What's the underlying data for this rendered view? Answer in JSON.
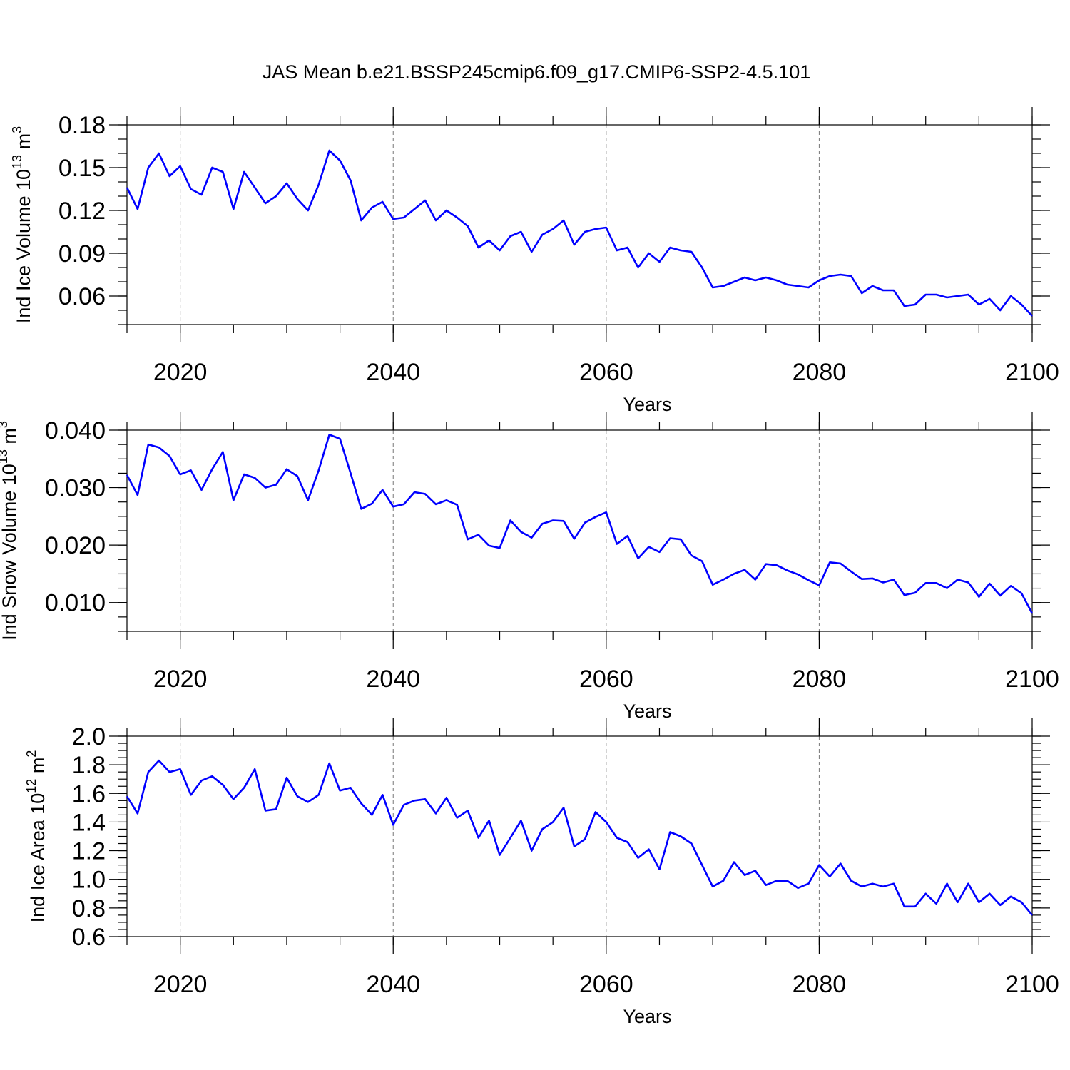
{
  "title": "JAS Mean b.e21.BSSP245cmip6.f09_g17.CMIP6-SSP2-4.5.101",
  "colors": {
    "series": "#0000ff",
    "frame": "#000000",
    "grid": "#777777"
  },
  "chart_data": [
    {
      "type": "line",
      "xlabel": "Years",
      "ylabel": "Ind Ice Volume 10",
      "ylabel_sup": "13",
      "ylabel_unit": " m",
      "ylabel_unit_sup": "3",
      "xlim": [
        2015,
        2100
      ],
      "ylim": [
        0.04,
        0.18
      ],
      "xticks": [
        2020,
        2040,
        2060,
        2080,
        2100
      ],
      "yticks": [
        0.06,
        0.09,
        0.12,
        0.15,
        0.18
      ],
      "ytick_labels": [
        "0.06",
        "0.09",
        "0.12",
        "0.15",
        "0.18"
      ],
      "y_minor_step": 0.01,
      "x_minor_step": 5,
      "grid": "vertical dashed at major x ticks",
      "x_start": 2015,
      "values": [
        0.136,
        0.121,
        0.15,
        0.16,
        0.144,
        0.151,
        0.135,
        0.131,
        0.15,
        0.147,
        0.121,
        0.147,
        0.136,
        0.125,
        0.13,
        0.139,
        0.128,
        0.12,
        0.138,
        0.162,
        0.155,
        0.141,
        0.113,
        0.122,
        0.126,
        0.114,
        0.115,
        0.121,
        0.127,
        0.113,
        0.12,
        0.115,
        0.109,
        0.094,
        0.099,
        0.092,
        0.102,
        0.105,
        0.091,
        0.103,
        0.107,
        0.113,
        0.096,
        0.105,
        0.107,
        0.108,
        0.092,
        0.094,
        0.08,
        0.09,
        0.084,
        0.094,
        0.092,
        0.091,
        0.08,
        0.066,
        0.067,
        0.07,
        0.073,
        0.071,
        0.073,
        0.071,
        0.068,
        0.067,
        0.066,
        0.071,
        0.074,
        0.075,
        0.074,
        0.062,
        0.067,
        0.064,
        0.064,
        0.053,
        0.054,
        0.061,
        0.061,
        0.059,
        0.06,
        0.061,
        0.054,
        0.058,
        0.05,
        0.06,
        0.054,
        0.046
      ]
    },
    {
      "type": "line",
      "xlabel": "Years",
      "ylabel": "Ind Snow Volume 10",
      "ylabel_sup": "13",
      "ylabel_unit": " m",
      "ylabel_unit_sup": "3",
      "xlim": [
        2015,
        2100
      ],
      "ylim": [
        0.005,
        0.04
      ],
      "xticks": [
        2020,
        2040,
        2060,
        2080,
        2100
      ],
      "yticks": [
        0.01,
        0.02,
        0.03,
        0.04
      ],
      "ytick_labels": [
        "0.010",
        "0.020",
        "0.030",
        "0.040"
      ],
      "y_minor_step": 0.0025,
      "x_minor_step": 5,
      "grid": "vertical dashed at major x ticks",
      "x_start": 2015,
      "values": [
        0.0322,
        0.0287,
        0.0375,
        0.037,
        0.0355,
        0.0323,
        0.033,
        0.0296,
        0.0332,
        0.0362,
        0.0278,
        0.0323,
        0.0317,
        0.03,
        0.0305,
        0.0332,
        0.032,
        0.0278,
        0.033,
        0.0392,
        0.0385,
        0.0325,
        0.0263,
        0.0272,
        0.0296,
        0.0267,
        0.0271,
        0.0292,
        0.0289,
        0.0271,
        0.0278,
        0.027,
        0.021,
        0.0218,
        0.0199,
        0.0195,
        0.0243,
        0.0223,
        0.0213,
        0.0237,
        0.0243,
        0.0242,
        0.0211,
        0.0239,
        0.0249,
        0.0257,
        0.0202,
        0.0216,
        0.0177,
        0.0197,
        0.0188,
        0.0212,
        0.021,
        0.0182,
        0.0172,
        0.0131,
        0.014,
        0.015,
        0.0157,
        0.014,
        0.0167,
        0.0165,
        0.0156,
        0.0149,
        0.0139,
        0.013,
        0.017,
        0.0168,
        0.0154,
        0.0141,
        0.0142,
        0.0135,
        0.014,
        0.0113,
        0.0117,
        0.0134,
        0.0134,
        0.0125,
        0.014,
        0.0135,
        0.011,
        0.0133,
        0.0112,
        0.0129,
        0.0116,
        0.0081
      ]
    },
    {
      "type": "line",
      "xlabel": "Years",
      "ylabel": "Ind Ice Area 10",
      "ylabel_sup": "12",
      "ylabel_unit": " m",
      "ylabel_unit_sup": "2",
      "xlim": [
        2015,
        2100
      ],
      "ylim": [
        0.6,
        2.0
      ],
      "xticks": [
        2020,
        2040,
        2060,
        2080,
        2100
      ],
      "yticks": [
        0.6,
        0.8,
        1.0,
        1.2,
        1.4,
        1.6,
        1.8,
        2.0
      ],
      "ytick_labels": [
        "0.6",
        "0.8",
        "1.0",
        "1.2",
        "1.4",
        "1.6",
        "1.8",
        "2.0"
      ],
      "y_minor_step": 0.05,
      "x_minor_step": 5,
      "grid": "vertical dashed at major x ticks",
      "x_start": 2015,
      "values": [
        1.58,
        1.46,
        1.75,
        1.83,
        1.75,
        1.77,
        1.59,
        1.69,
        1.72,
        1.66,
        1.56,
        1.64,
        1.77,
        1.48,
        1.49,
        1.71,
        1.58,
        1.54,
        1.59,
        1.81,
        1.62,
        1.64,
        1.53,
        1.45,
        1.59,
        1.38,
        1.52,
        1.55,
        1.56,
        1.46,
        1.57,
        1.43,
        1.48,
        1.29,
        1.41,
        1.17,
        1.29,
        1.41,
        1.2,
        1.35,
        1.4,
        1.5,
        1.23,
        1.28,
        1.47,
        1.4,
        1.29,
        1.26,
        1.15,
        1.21,
        1.07,
        1.33,
        1.3,
        1.25,
        1.1,
        0.95,
        0.99,
        1.12,
        1.03,
        1.06,
        0.96,
        0.99,
        0.99,
        0.94,
        0.97,
        1.1,
        1.02,
        1.11,
        0.99,
        0.95,
        0.97,
        0.95,
        0.97,
        0.81,
        0.81,
        0.9,
        0.83,
        0.97,
        0.84,
        0.97,
        0.84,
        0.9,
        0.82,
        0.88,
        0.84,
        0.75
      ]
    }
  ]
}
